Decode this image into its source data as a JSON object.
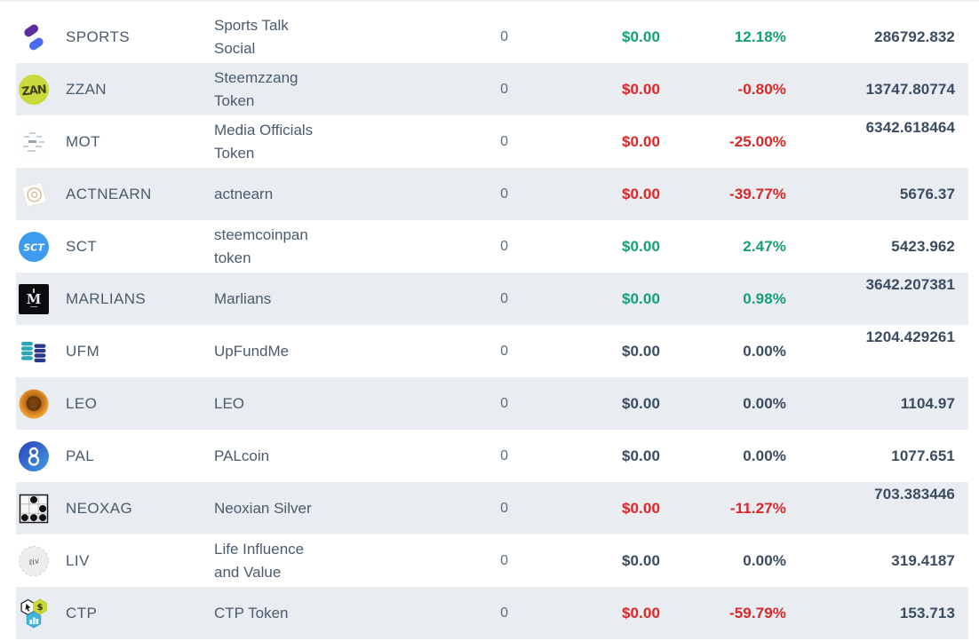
{
  "table": {
    "colors": {
      "positive": "#14a071",
      "negative": "#dc2626",
      "neutral_value": "#3b4c61",
      "text": "#4a5b6d",
      "alt_row_bg": "#e9edf2"
    },
    "rows": [
      {
        "symbol": "SPORTS",
        "name": "Sports Talk\nSocial",
        "icon": "sports-icon",
        "quantity": "0",
        "usd_value": "$0.00",
        "change": "12.18%",
        "trend": "positive",
        "balance": "286792.832",
        "balance_raised": false
      },
      {
        "symbol": "ZZAN",
        "name": "Steemzzang\nToken",
        "icon": "zzan-icon",
        "quantity": "0",
        "usd_value": "$0.00",
        "change": "-0.80%",
        "trend": "negative",
        "balance": "13747.80774",
        "balance_raised": false
      },
      {
        "symbol": "MOT",
        "name": "Media Officials\nToken",
        "icon": "mot-icon",
        "quantity": "0",
        "usd_value": "$0.00",
        "change": "-25.00%",
        "trend": "negative",
        "balance": "6342.618464",
        "balance_raised": true
      },
      {
        "symbol": "ACTNEARN",
        "name": "actnearn",
        "icon": "actnearn-icon",
        "quantity": "0",
        "usd_value": "$0.00",
        "change": "-39.77%",
        "trend": "negative",
        "balance": "5676.37",
        "balance_raised": false
      },
      {
        "symbol": "SCT",
        "name": "steemcoinpan\ntoken",
        "icon": "sct-icon",
        "quantity": "0",
        "usd_value": "$0.00",
        "change": "2.47%",
        "trend": "positive",
        "balance": "5423.962",
        "balance_raised": false
      },
      {
        "symbol": "MARLIANS",
        "name": "Marlians",
        "icon": "marlians-icon",
        "quantity": "0",
        "usd_value": "$0.00",
        "change": "0.98%",
        "trend": "positive",
        "balance": "3642.207381",
        "balance_raised": true
      },
      {
        "symbol": "UFM",
        "name": "UpFundMe",
        "icon": "ufm-icon",
        "quantity": "0",
        "usd_value": "$0.00",
        "change": "0.00%",
        "trend": "neutral",
        "balance": "1204.429261",
        "balance_raised": true
      },
      {
        "symbol": "LEO",
        "name": "LEO",
        "icon": "leo-icon",
        "quantity": "0",
        "usd_value": "$0.00",
        "change": "0.00%",
        "trend": "neutral",
        "balance": "1104.97",
        "balance_raised": false
      },
      {
        "symbol": "PAL",
        "name": "PALcoin",
        "icon": "pal-icon",
        "quantity": "0",
        "usd_value": "$0.00",
        "change": "0.00%",
        "trend": "neutral",
        "balance": "1077.651",
        "balance_raised": false
      },
      {
        "symbol": "NEOXAG",
        "name": "Neoxian Silver",
        "icon": "neoxag-icon",
        "quantity": "0",
        "usd_value": "$0.00",
        "change": "-11.27%",
        "trend": "negative",
        "balance": "703.383446",
        "balance_raised": true
      },
      {
        "symbol": "LIV",
        "name": "Life Influence\nand Value",
        "icon": "liv-icon",
        "quantity": "0",
        "usd_value": "$0.00",
        "change": "0.00%",
        "trend": "neutral",
        "balance": "319.4187",
        "balance_raised": false
      },
      {
        "symbol": "CTP",
        "name": "CTP Token",
        "icon": "ctp-icon",
        "quantity": "0",
        "usd_value": "$0.00",
        "change": "-59.79%",
        "trend": "negative",
        "balance": "153.713",
        "balance_raised": false
      }
    ]
  }
}
